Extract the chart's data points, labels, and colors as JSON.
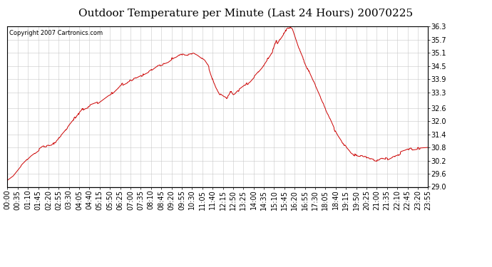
{
  "title": "Outdoor Temperature per Minute (Last 24 Hours) 20070225",
  "copyright": "Copyright 2007 Cartronics.com",
  "line_color": "#cc0000",
  "background_color": "#ffffff",
  "grid_color": "#c8c8c8",
  "ylim": [
    29.0,
    36.3
  ],
  "yticks": [
    29.0,
    29.6,
    30.2,
    30.8,
    31.4,
    32.0,
    32.6,
    33.3,
    33.9,
    34.5,
    35.1,
    35.7,
    36.3
  ],
  "title_fontsize": 11,
  "tick_fontsize": 7,
  "x_tick_labels": [
    "00:00",
    "00:35",
    "01:10",
    "01:45",
    "02:20",
    "02:55",
    "03:30",
    "04:05",
    "04:40",
    "05:15",
    "05:50",
    "06:25",
    "07:00",
    "07:35",
    "08:10",
    "08:45",
    "09:20",
    "09:55",
    "10:30",
    "11:05",
    "11:40",
    "12:15",
    "12:50",
    "13:25",
    "14:00",
    "14:35",
    "15:10",
    "15:45",
    "16:20",
    "16:55",
    "17:30",
    "18:05",
    "18:40",
    "19:15",
    "19:50",
    "20:25",
    "21:00",
    "21:35",
    "22:10",
    "22:45",
    "23:20",
    "23:55"
  ],
  "control_points": [
    [
      0,
      29.3
    ],
    [
      20,
      29.5
    ],
    [
      35,
      29.75
    ],
    [
      50,
      30.0
    ],
    [
      65,
      30.2
    ],
    [
      80,
      30.4
    ],
    [
      90,
      30.5
    ],
    [
      100,
      30.6
    ],
    [
      110,
      30.7
    ],
    [
      120,
      30.8
    ],
    [
      130,
      30.85
    ],
    [
      150,
      30.9
    ],
    [
      165,
      31.05
    ],
    [
      175,
      31.2
    ],
    [
      185,
      31.35
    ],
    [
      195,
      31.5
    ],
    [
      210,
      31.8
    ],
    [
      225,
      32.05
    ],
    [
      235,
      32.2
    ],
    [
      245,
      32.35
    ],
    [
      255,
      32.5
    ],
    [
      265,
      32.6
    ],
    [
      275,
      32.65
    ],
    [
      285,
      32.7
    ],
    [
      295,
      32.75
    ],
    [
      305,
      32.8
    ],
    [
      315,
      32.9
    ],
    [
      325,
      33.0
    ],
    [
      335,
      33.1
    ],
    [
      345,
      33.2
    ],
    [
      360,
      33.3
    ],
    [
      375,
      33.5
    ],
    [
      390,
      33.65
    ],
    [
      405,
      33.75
    ],
    [
      420,
      33.85
    ],
    [
      435,
      33.9
    ],
    [
      450,
      34.0
    ],
    [
      465,
      34.1
    ],
    [
      480,
      34.2
    ],
    [
      490,
      34.3
    ],
    [
      500,
      34.4
    ],
    [
      510,
      34.5
    ],
    [
      520,
      34.55
    ],
    [
      530,
      34.6
    ],
    [
      540,
      34.65
    ],
    [
      550,
      34.7
    ],
    [
      555,
      34.75
    ],
    [
      560,
      34.8
    ],
    [
      565,
      34.85
    ],
    [
      570,
      34.9
    ],
    [
      575,
      34.92
    ],
    [
      578,
      34.94
    ],
    [
      580,
      34.96
    ],
    [
      582,
      34.98
    ],
    [
      584,
      35.0
    ],
    [
      586,
      35.02
    ],
    [
      588,
      35.04
    ],
    [
      590,
      35.06
    ],
    [
      592,
      35.08
    ],
    [
      594,
      35.1
    ],
    [
      596,
      35.08
    ],
    [
      598,
      35.06
    ],
    [
      600,
      35.05
    ],
    [
      605,
      35.04
    ],
    [
      610,
      35.03
    ],
    [
      615,
      35.02
    ],
    [
      620,
      35.02
    ],
    [
      625,
      35.03
    ],
    [
      630,
      35.05
    ],
    [
      633,
      35.08
    ],
    [
      636,
      35.1
    ],
    [
      638,
      35.09
    ],
    [
      640,
      35.07
    ],
    [
      643,
      35.05
    ],
    [
      646,
      35.03
    ],
    [
      650,
      35.0
    ],
    [
      655,
      34.95
    ],
    [
      660,
      34.9
    ],
    [
      665,
      34.85
    ],
    [
      670,
      34.8
    ],
    [
      675,
      34.75
    ],
    [
      680,
      34.65
    ],
    [
      685,
      34.55
    ],
    [
      690,
      34.4
    ],
    [
      695,
      34.2
    ],
    [
      700,
      34.0
    ],
    [
      705,
      33.8
    ],
    [
      710,
      33.6
    ],
    [
      715,
      33.45
    ],
    [
      720,
      33.35
    ],
    [
      725,
      33.25
    ],
    [
      730,
      33.2
    ],
    [
      735,
      33.15
    ],
    [
      740,
      33.1
    ],
    [
      745,
      33.07
    ],
    [
      750,
      33.05
    ],
    [
      755,
      33.1
    ],
    [
      758,
      33.15
    ],
    [
      760,
      33.2
    ],
    [
      763,
      33.3
    ],
    [
      765,
      33.35
    ],
    [
      767,
      33.3
    ],
    [
      770,
      33.25
    ],
    [
      773,
      33.2
    ],
    [
      776,
      33.22
    ],
    [
      779,
      33.25
    ],
    [
      782,
      33.3
    ],
    [
      785,
      33.35
    ],
    [
      790,
      33.4
    ],
    [
      800,
      33.5
    ],
    [
      810,
      33.6
    ],
    [
      820,
      33.7
    ],
    [
      830,
      33.8
    ],
    [
      840,
      33.95
    ],
    [
      850,
      34.1
    ],
    [
      860,
      34.25
    ],
    [
      870,
      34.4
    ],
    [
      880,
      34.6
    ],
    [
      890,
      34.8
    ],
    [
      900,
      35.0
    ],
    [
      908,
      35.2
    ],
    [
      912,
      35.4
    ],
    [
      916,
      35.55
    ],
    [
      918,
      35.6
    ],
    [
      920,
      35.65
    ],
    [
      922,
      35.6
    ],
    [
      924,
      35.55
    ],
    [
      926,
      35.6
    ],
    [
      928,
      35.65
    ],
    [
      930,
      35.7
    ],
    [
      932,
      35.75
    ],
    [
      935,
      35.8
    ],
    [
      940,
      35.9
    ],
    [
      945,
      36.0
    ],
    [
      950,
      36.1
    ],
    [
      955,
      36.2
    ],
    [
      960,
      36.25
    ],
    [
      963,
      36.28
    ],
    [
      966,
      36.3
    ],
    [
      968,
      36.28
    ],
    [
      970,
      36.25
    ],
    [
      975,
      36.2
    ],
    [
      980,
      36.0
    ],
    [
      985,
      35.8
    ],
    [
      990,
      35.6
    ],
    [
      995,
      35.4
    ],
    [
      1000,
      35.2
    ],
    [
      1010,
      34.9
    ],
    [
      1020,
      34.6
    ],
    [
      1030,
      34.3
    ],
    [
      1040,
      34.0
    ],
    [
      1050,
      33.7
    ],
    [
      1060,
      33.4
    ],
    [
      1070,
      33.1
    ],
    [
      1080,
      32.8
    ],
    [
      1090,
      32.5
    ],
    [
      1100,
      32.2
    ],
    [
      1110,
      31.9
    ],
    [
      1120,
      31.6
    ],
    [
      1130,
      31.35
    ],
    [
      1140,
      31.15
    ],
    [
      1150,
      30.95
    ],
    [
      1160,
      30.8
    ],
    [
      1170,
      30.65
    ],
    [
      1175,
      30.55
    ],
    [
      1180,
      30.5
    ],
    [
      1185,
      30.48
    ],
    [
      1190,
      30.45
    ],
    [
      1195,
      30.42
    ],
    [
      1200,
      30.4
    ],
    [
      1210,
      30.38
    ],
    [
      1220,
      30.35
    ],
    [
      1230,
      30.32
    ],
    [
      1240,
      30.28
    ],
    [
      1248,
      30.25
    ],
    [
      1255,
      30.22
    ],
    [
      1260,
      30.2
    ],
    [
      1265,
      30.22
    ],
    [
      1270,
      30.25
    ],
    [
      1275,
      30.28
    ],
    [
      1280,
      30.3
    ],
    [
      1285,
      30.32
    ],
    [
      1290,
      30.3
    ],
    [
      1295,
      30.28
    ],
    [
      1300,
      30.25
    ],
    [
      1305,
      30.28
    ],
    [
      1310,
      30.32
    ],
    [
      1315,
      30.35
    ],
    [
      1320,
      30.38
    ],
    [
      1325,
      30.4
    ],
    [
      1330,
      30.42
    ],
    [
      1335,
      30.45
    ],
    [
      1340,
      30.5
    ],
    [
      1345,
      30.55
    ],
    [
      1350,
      30.58
    ],
    [
      1355,
      30.6
    ],
    [
      1360,
      30.62
    ],
    [
      1365,
      30.65
    ],
    [
      1370,
      30.68
    ],
    [
      1375,
      30.7
    ],
    [
      1380,
      30.72
    ],
    [
      1385,
      30.73
    ],
    [
      1390,
      30.74
    ],
    [
      1395,
      30.75
    ],
    [
      1400,
      30.76
    ],
    [
      1410,
      30.77
    ],
    [
      1420,
      30.78
    ],
    [
      1430,
      30.79
    ],
    [
      1440,
      30.8
    ]
  ]
}
